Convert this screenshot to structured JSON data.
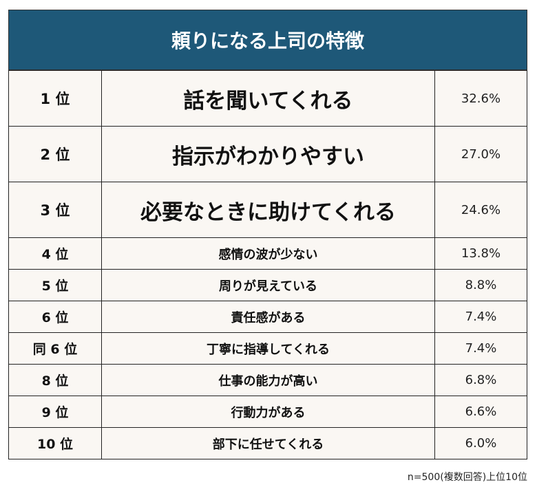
{
  "title": "頼りになる上司の特徴",
  "rows": [
    {
      "rank": "1 位",
      "item": "話を聞いてくれる",
      "percent": "32.6%"
    },
    {
      "rank": "2 位",
      "item": "指示がわかりやすい",
      "percent": "27.0%"
    },
    {
      "rank": "3 位",
      "item": "必要なときに助けてくれる",
      "percent": "24.6%"
    },
    {
      "rank": "4 位",
      "item": "感情の波が少ない",
      "percent": "13.8%"
    },
    {
      "rank": "5 位",
      "item": "周りが見えている",
      "percent": "8.8%"
    },
    {
      "rank": "6 位",
      "item": "責任感がある",
      "percent": "7.4%"
    },
    {
      "rank": "同 6 位",
      "item": "丁寧に指導してくれる",
      "percent": "7.4%"
    },
    {
      "rank": "8 位",
      "item": "仕事の能力が高い",
      "percent": "6.8%"
    },
    {
      "rank": "9 位",
      "item": "行動力がある",
      "percent": "6.6%"
    },
    {
      "rank": "10 位",
      "item": "部下に任せてくれる",
      "percent": "6.0%"
    }
  ],
  "note": "n=500(複数回答)上位10位",
  "colors": {
    "header_bg": "#1e5878",
    "cell_bg": "#faf7f3"
  }
}
